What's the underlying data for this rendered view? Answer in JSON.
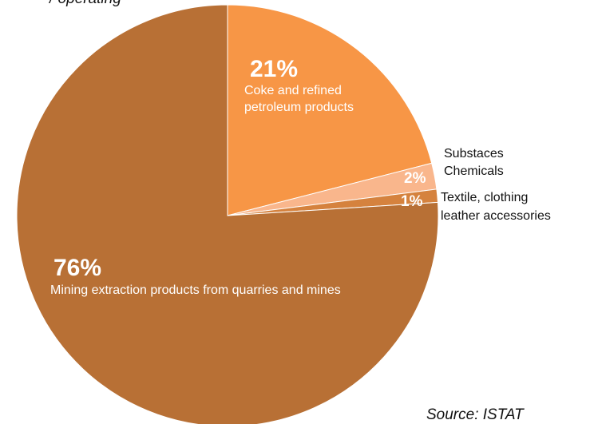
{
  "header_fragment": "/ operating",
  "source": "Source: ISTAT",
  "colors": {
    "background": "#ffffff",
    "label_dark": "#111111",
    "label_light": "#ffffff"
  },
  "chart_data": {
    "type": "pie",
    "title": "",
    "slices": [
      {
        "pct_label": "21%",
        "lines": [
          "Coke and refined",
          "petroleum products"
        ],
        "value": 21,
        "color": "#f79646"
      },
      {
        "pct_label": "2%",
        "lines": [
          "Substaces",
          "Chemicals"
        ],
        "value": 2,
        "color": "#f9b68c"
      },
      {
        "pct_label": "1%",
        "lines": [
          "Textile, clothing",
          "leather accessories"
        ],
        "value": 1,
        "color": "#d5823e"
      },
      {
        "pct_label": "76%",
        "lines": [
          "Mining extraction products from quarries and mines"
        ],
        "value": 76,
        "color": "#b87035"
      }
    ],
    "start_angle": "12 o'clock",
    "direction": "clockwise"
  }
}
